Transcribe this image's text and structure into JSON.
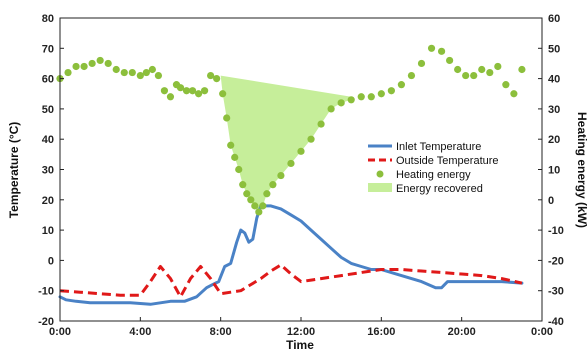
{
  "chart_data": {
    "type": "line",
    "xlabel": "Time",
    "ylabel_left": "Temperature (°C)",
    "ylabel_right": "Heating energy (kW)",
    "x_ticks": [
      "0:00",
      "4:00",
      "8:00",
      "12:00",
      "16:00",
      "20:00",
      "0:00"
    ],
    "x_range_hours": [
      0,
      24
    ],
    "y_left_range": [
      -20,
      80
    ],
    "y_left_ticks": [
      "80",
      "70",
      "60",
      "50",
      "40",
      "30",
      "20",
      "10",
      "0",
      "-10",
      "-20"
    ],
    "y_right_range": [
      -40,
      60
    ],
    "y_right_ticks": [
      "60",
      "50",
      "40",
      "30",
      "20",
      "10",
      "0",
      "-10",
      "-20",
      "-30",
      "-40"
    ],
    "legend_position": "right",
    "colors": {
      "inlet": "#4a82c6",
      "outside": "#e01919",
      "energy": "#8cbf3c",
      "recovered": "#c6ee9a"
    },
    "series": [
      {
        "name": "Inlet Temperature",
        "axis": "left",
        "style": "line",
        "x": [
          0,
          0.3,
          0.8,
          1.5,
          2.5,
          3.5,
          4.5,
          5.5,
          6.2,
          6.8,
          7.3,
          7.6,
          7.9,
          8.2,
          8.5,
          8.8,
          9.0,
          9.2,
          9.4,
          9.6,
          9.8,
          10.0,
          10.2,
          10.5,
          11.0,
          11.5,
          12.0,
          12.5,
          13.0,
          13.5,
          14.0,
          14.5,
          15.0,
          15.5,
          16.0,
          17.0,
          18.0,
          18.7,
          19.0,
          19.3,
          20.0,
          21.0,
          22.0,
          23.0
        ],
        "y": [
          -12,
          -13,
          -13.5,
          -14,
          -14,
          -14,
          -14.5,
          -13.5,
          -13.5,
          -12,
          -9,
          -8,
          -7,
          -2,
          -1,
          6,
          10,
          9,
          6,
          7,
          14,
          18,
          18,
          18,
          17,
          15,
          13,
          10,
          7,
          4,
          1,
          -1,
          -2,
          -3,
          -3,
          -5,
          -7,
          -9,
          -9,
          -7,
          -7,
          -7,
          -7,
          -7.5
        ]
      },
      {
        "name": "Outside Temperature",
        "axis": "left",
        "style": "dashed",
        "x": [
          0,
          1,
          2,
          3,
          4,
          4.5,
          5.0,
          5.5,
          6.0,
          6.5,
          7.0,
          7.5,
          8.0,
          8.5,
          9.0,
          9.5,
          10.0,
          10.5,
          11.0,
          11.5,
          12.0,
          12.5,
          13.0,
          14.0,
          15.0,
          16.0,
          17.0,
          18.0,
          19.0,
          20.0,
          21.0,
          22.0,
          23.0
        ],
        "y": [
          -10,
          -10.5,
          -11,
          -11.5,
          -11.5,
          -7,
          -2,
          -6,
          -12,
          -6,
          -2,
          -6,
          -11,
          -10.5,
          -10,
          -8,
          -6,
          -3.5,
          -1.5,
          -4.5,
          -7,
          -6.5,
          -6,
          -5,
          -4,
          -3,
          -3,
          -3.5,
          -4,
          -4.5,
          -5,
          -6,
          -7.5
        ]
      },
      {
        "name": "Heating energy",
        "axis": "right",
        "style": "markers",
        "x": [
          0,
          0.4,
          0.8,
          1.2,
          1.6,
          2.0,
          2.4,
          2.8,
          3.2,
          3.6,
          4.0,
          4.3,
          4.6,
          4.9,
          5.2,
          5.5,
          5.8,
          6.0,
          6.3,
          6.6,
          6.9,
          7.2,
          7.5,
          7.8,
          8.1,
          8.3,
          8.5,
          8.7,
          8.9,
          9.1,
          9.3,
          9.5,
          9.7,
          9.9,
          10.1,
          10.3,
          10.6,
          11.0,
          11.5,
          12.0,
          12.5,
          13.0,
          13.5,
          14.0,
          14.5,
          15.0,
          15.5,
          16.0,
          16.5,
          17.0,
          17.5,
          18.0,
          18.5,
          19.0,
          19.4,
          19.8,
          20.2,
          20.6,
          21.0,
          21.4,
          21.8,
          22.2,
          22.6,
          23.0
        ],
        "y": [
          40,
          42,
          44,
          44,
          45,
          46,
          45,
          43,
          42,
          42,
          41,
          42,
          43,
          41,
          36,
          34,
          38,
          37,
          36,
          36,
          35,
          36,
          41,
          40,
          35,
          27,
          18,
          14,
          10,
          5,
          2,
          0,
          -2,
          -4,
          -2,
          2,
          5,
          8,
          12,
          16,
          20,
          25,
          30,
          32,
          33,
          34,
          34,
          35,
          36,
          38,
          41,
          45,
          50,
          49,
          46,
          43,
          41,
          41,
          43,
          42,
          44,
          38,
          35,
          43
        ]
      }
    ],
    "recovered_area": {
      "name": "Energy recovered",
      "axis": "right",
      "top_x": [
        8.0,
        14.5
      ],
      "top_y": [
        41,
        34
      ],
      "lower_bound_series": "Heating energy",
      "x_range": [
        8.0,
        14.5
      ]
    }
  }
}
